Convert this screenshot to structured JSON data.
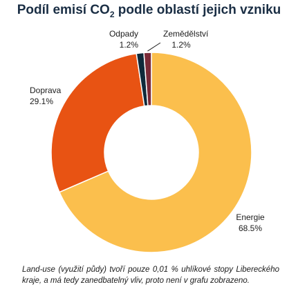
{
  "chart_data": {
    "type": "pie",
    "donut": true,
    "title_prefix": "Podíl emisí CO",
    "title_sub": "2",
    "title_suffix": " podle oblastí jejich vzniku",
    "slices": [
      {
        "label": "Energie",
        "value": 68.5,
        "value_label": "68.5%",
        "color": "#fbbf4d"
      },
      {
        "label": "Doprava",
        "value": 29.1,
        "value_label": "29.1%",
        "color": "#e85313"
      },
      {
        "label": "Odpady",
        "value": 1.2,
        "value_label": "1.2%",
        "color": "#0f2a3a"
      },
      {
        "label": "Zemědělství",
        "value": 1.2,
        "value_label": "1.2%",
        "color": "#7a2a37"
      }
    ],
    "legend": "none",
    "footnote": "Land-use (využití půdy) tvoří pouze 0,01 % uhlíkové stopy Libereckého kraje, a má tedy zanedbatelný vliv, proto není v grafu zobrazeno."
  }
}
